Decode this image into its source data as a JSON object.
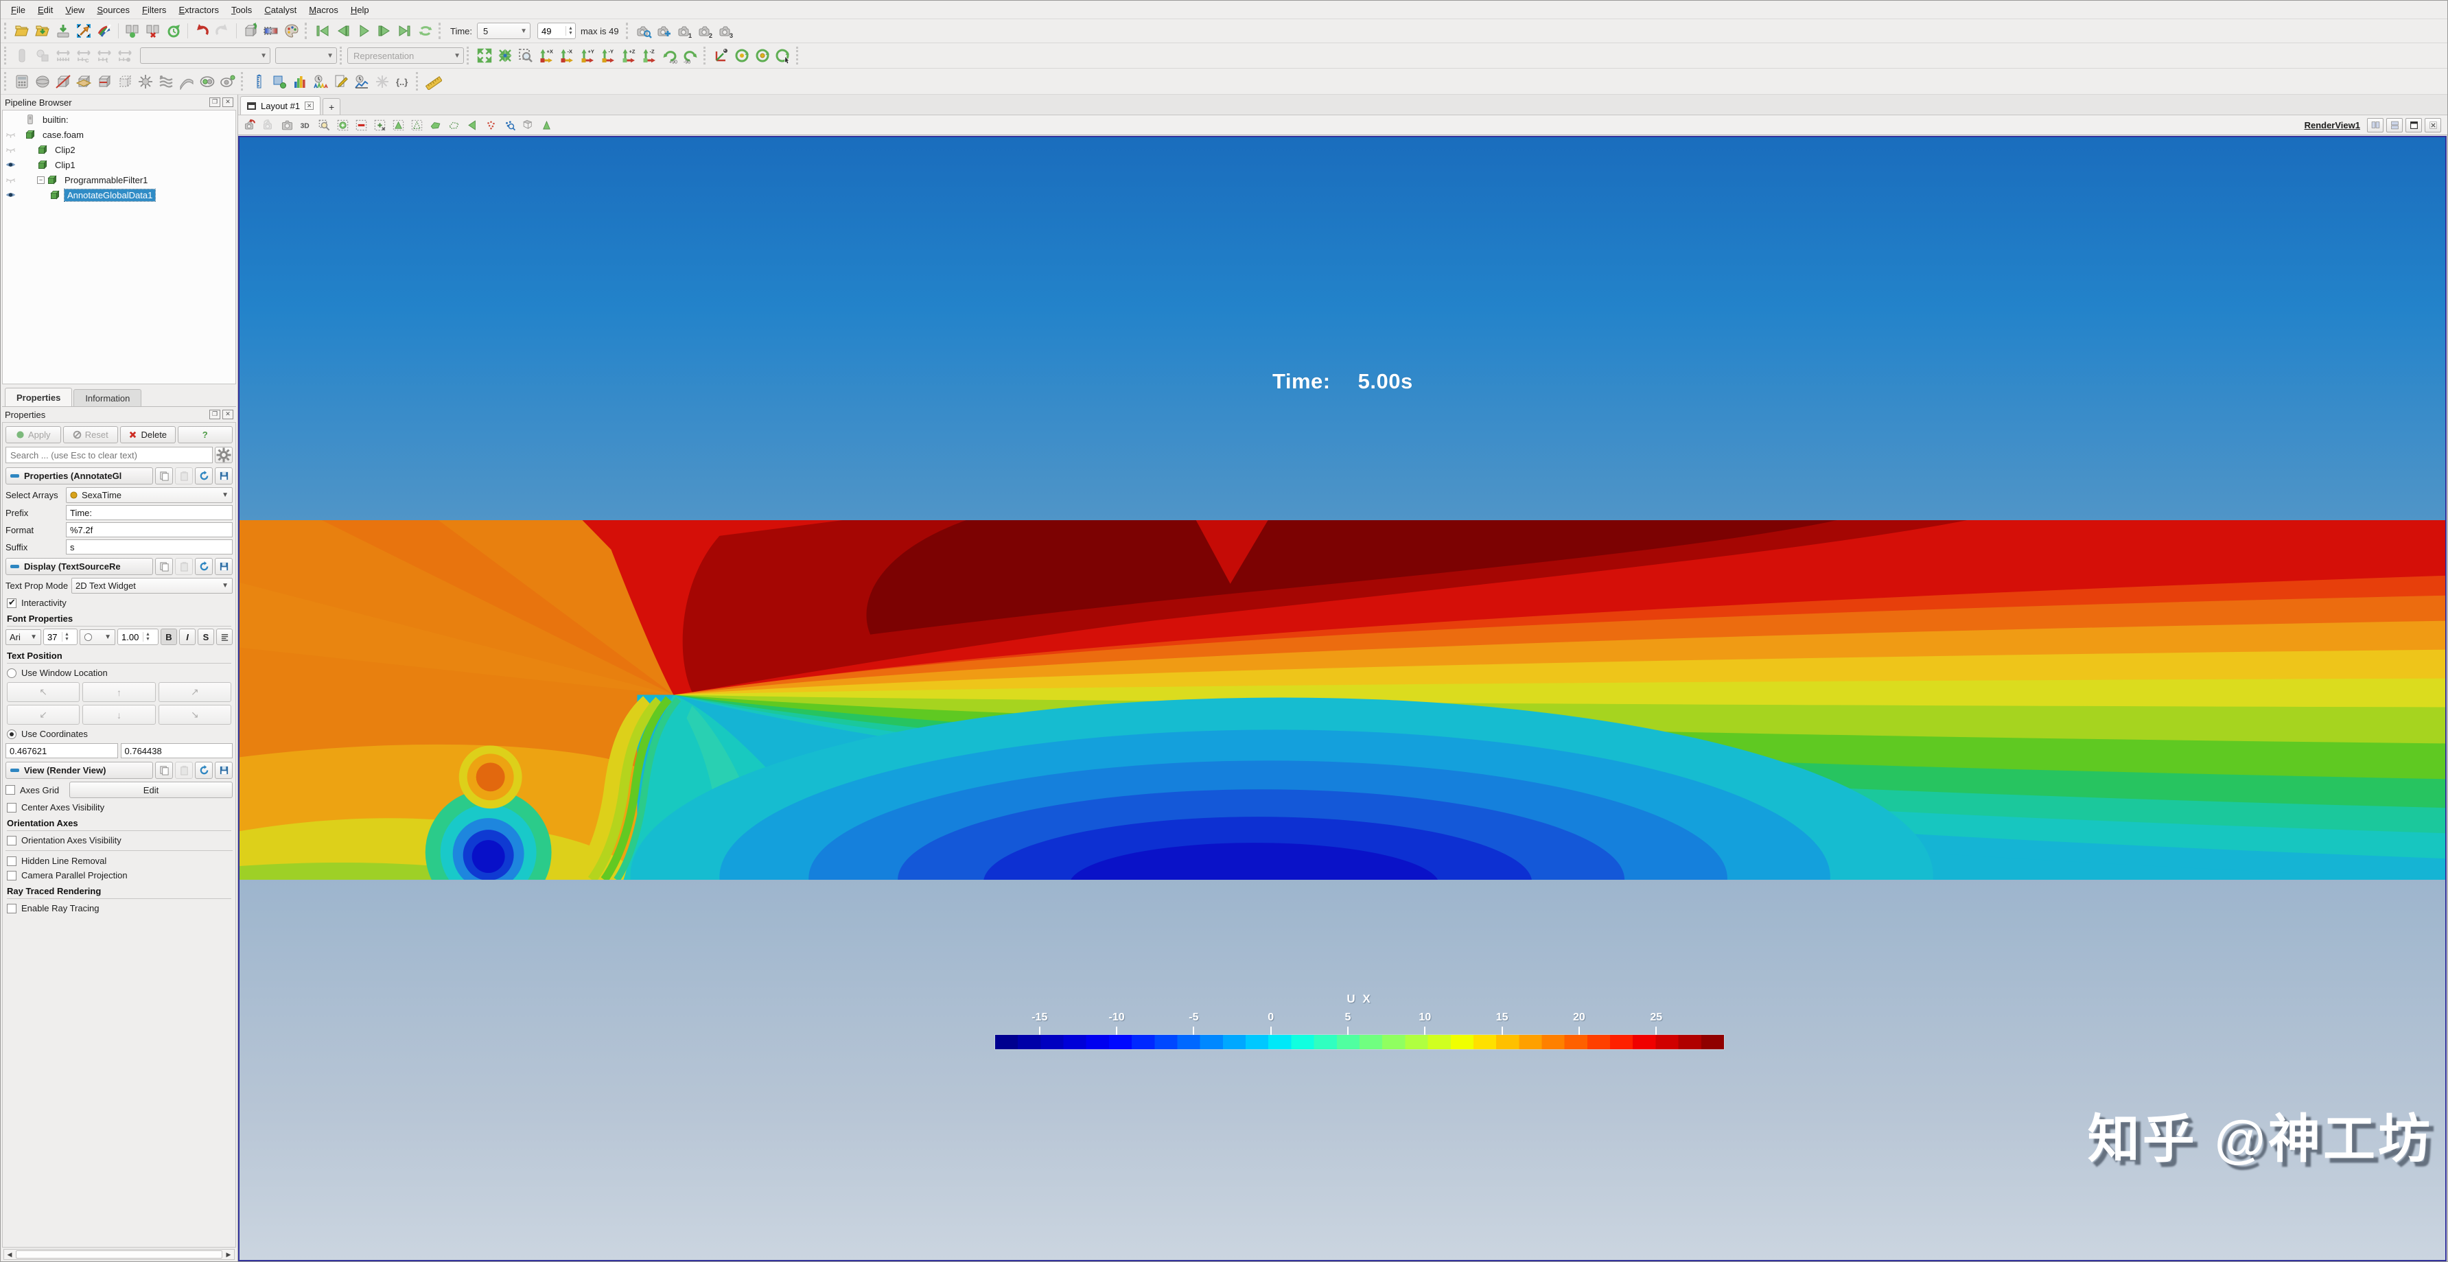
{
  "menu": {
    "items": [
      "File",
      "Edit",
      "View",
      "Sources",
      "Filters",
      "Extractors",
      "Tools",
      "Catalyst",
      "Macros",
      "Help"
    ]
  },
  "toolbar1": {
    "file_icons": [
      "open-file",
      "save-file",
      "save-data",
      "save-screenshot",
      "save-animation"
    ],
    "server_icons": [
      "connect",
      "disconnect",
      "reset-session"
    ],
    "edit_icons": [
      "undo",
      "redo"
    ],
    "apply_icons": [
      "auto-apply",
      "edit-color-map",
      "color-palette"
    ],
    "playback_icons": [
      "first-frame",
      "previous-frame",
      "play",
      "next-frame",
      "last-frame",
      "loop"
    ],
    "time_label": "Time:",
    "time_value": "5",
    "frame_value": "49",
    "max_text": "max is 49",
    "camera_icons": [
      "zoom-to-data-camera",
      "add-camera-link",
      "camera-link-1",
      "camera-link-2",
      "camera-link-3"
    ]
  },
  "toolbar2": {
    "rep_icons": [
      "representation-surface",
      "representation-edit",
      "rescale-data-range",
      "rescale-custom-range",
      "rescale-temporal-range",
      "rescale-visible-range"
    ],
    "color_by_value": "",
    "component_value": "",
    "representation_value": "Representation",
    "camera_icons": [
      "reset-camera",
      "zoom-to-data",
      "zoom-to-box",
      "view-plus-x",
      "view-minus-x",
      "view-plus-y",
      "view-minus-y",
      "view-plus-z",
      "view-minus-z",
      "rotate-90-cw",
      "rotate-90-ccw"
    ],
    "axes_icons": [
      "show-orientation-axes",
      "show-center-axes",
      "pick-rotation-center",
      "reset-rotation-center"
    ]
  },
  "toolbar3": {
    "filter_icons": [
      "calculator",
      "contour",
      "clip",
      "slice",
      "threshold",
      "extract-subset",
      "glyph",
      "stream-tracer",
      "warp-by-vector",
      "group-datasets",
      "extract-block"
    ],
    "analysis_icons": [
      "probe-location",
      "plot-over-line",
      "histogram",
      "plot-global-variables",
      "programmable-filter",
      "plot-selection-over-time",
      "python-annotation",
      "expression"
    ],
    "measure_icons": [
      "ruler"
    ]
  },
  "pipeline": {
    "title": "Pipeline Browser",
    "items": [
      {
        "label": "builtin:",
        "icon": "server",
        "eye": "none",
        "indent": 0,
        "selected": false,
        "expander": false
      },
      {
        "label": "case.foam",
        "icon": "cube",
        "eye": "hidden",
        "indent": 0,
        "selected": false,
        "expander": false
      },
      {
        "label": "Clip2",
        "icon": "cube",
        "eye": "hidden",
        "indent": 1,
        "selected": false,
        "expander": false
      },
      {
        "label": "Clip1",
        "icon": "cube",
        "eye": "visible",
        "indent": 1,
        "selected": false,
        "expander": false
      },
      {
        "label": "ProgrammableFilter1",
        "icon": "cube",
        "eye": "hidden",
        "indent": 1,
        "selected": false,
        "expander": true
      },
      {
        "label": "AnnotateGlobalData1",
        "icon": "cube",
        "eye": "visible",
        "indent": 2,
        "selected": true,
        "expander": false
      }
    ]
  },
  "props": {
    "tab_properties": "Properties",
    "tab_information": "Information",
    "title": "Properties",
    "apply": "Apply",
    "reset": "Reset",
    "delete": "Delete",
    "help": "?",
    "search_placeholder": "Search ... (use Esc to clear text)",
    "section_properties": "Properties (AnnotateGl",
    "select_arrays_label": "Select Arrays",
    "select_arrays_value": "SexaTime",
    "prefix_label": "Prefix",
    "prefix_value": "Time:",
    "format_label": "Format",
    "format_value": "%7.2f",
    "suffix_label": "Suffix",
    "suffix_value": "s",
    "section_display": "Display (TextSourceRe",
    "text_prop_mode_label": "Text Prop Mode",
    "text_prop_mode_value": "2D Text Widget",
    "interactivity": "Interactivity",
    "font_properties": "Font Properties",
    "font_family_value": "Ari",
    "font_size_value": "37",
    "opacity_value": "1.00",
    "bold": "B",
    "italic": "I",
    "shadow": "S",
    "text_position": "Text Position",
    "use_window_location": "Use Window Location",
    "position_arrows": [
      "↖",
      "↑",
      "↗",
      "↙",
      "↓",
      "↘"
    ],
    "use_coordinates": "Use Coordinates",
    "coord_x": "0.467621",
    "coord_y": "0.764438",
    "section_view": "View (Render View)",
    "axes_grid": "Axes Grid",
    "edit": "Edit",
    "center_axes": "Center Axes Visibility",
    "orientation_axes": "Orientation Axes",
    "orientation_axes_visibility": "Orientation Axes Visibility",
    "hidden_line": "Hidden Line Removal",
    "camera_parallel": "Camera Parallel Projection",
    "ray_traced": "Ray Traced Rendering",
    "enable_ray_tracing": "Enable Ray Tracing"
  },
  "layout": {
    "tab": "Layout #1",
    "add": "+"
  },
  "rv": {
    "toolbar_icons": [
      "camera-undo",
      "camera-redo",
      "capture-screenshot",
      "toggle-3d",
      "zoom-box",
      "selection-add",
      "selection-subtract",
      "selection-grow",
      "select-cells-rect",
      "select-points-rect",
      "select-cells-polygon",
      "select-points-polygon",
      "select-block",
      "interactive-select-cells",
      "interactive-select-points",
      "hover-cells",
      "selection-display"
    ],
    "disabled_icons": [
      "camera-redo"
    ],
    "toggle_3d_label": "3D",
    "title": "RenderView1",
    "window_icons": [
      "split-horizontal",
      "split-vertical",
      "maximize",
      "close"
    ],
    "time_prefix": "Time:",
    "time_value": "5.00s",
    "watermark": "知乎 @神工坊",
    "colorbar": {
      "title": "U X",
      "ticks": [
        "-15",
        "-10",
        "-5",
        "0",
        "5",
        "10",
        "15",
        "20",
        "25"
      ],
      "tick_start_pct": 6.1,
      "tick_step_pct": 10.575,
      "colors": [
        "#00008f",
        "#0000a8",
        "#0000c0",
        "#0000d8",
        "#0000f0",
        "#0008ff",
        "#0028ff",
        "#0048ff",
        "#0068ff",
        "#0088ff",
        "#00a8ff",
        "#00c8ff",
        "#00e8f8",
        "#10ffe0",
        "#30ffc0",
        "#50ffa0",
        "#70ff80",
        "#90ff60",
        "#b0ff40",
        "#d0ff20",
        "#f0ff00",
        "#ffe000",
        "#ffc000",
        "#ffa000",
        "#ff8000",
        "#ff6000",
        "#ff4000",
        "#ff2000",
        "#f00000",
        "#d00000",
        "#b00000",
        "#900000"
      ]
    }
  }
}
